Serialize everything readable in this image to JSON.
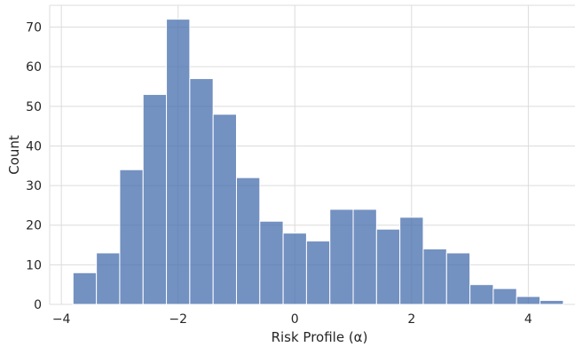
{
  "chart_data": {
    "type": "bar",
    "subtype": "histogram",
    "title": "",
    "xlabel": "Risk Profile (α)",
    "ylabel": "Count",
    "bin_width": 0.4,
    "xlim": [
      -4.2,
      4.8
    ],
    "ylim": [
      0,
      75.5
    ],
    "grid": true,
    "bins": [
      {
        "x0": -3.8,
        "x1": -3.4,
        "count": 8
      },
      {
        "x0": -3.4,
        "x1": -3.0,
        "count": 13
      },
      {
        "x0": -3.0,
        "x1": -2.6,
        "count": 34
      },
      {
        "x0": -2.6,
        "x1": -2.2,
        "count": 53
      },
      {
        "x0": -2.2,
        "x1": -1.8,
        "count": 72
      },
      {
        "x0": -1.8,
        "x1": -1.4,
        "count": 57
      },
      {
        "x0": -1.4,
        "x1": -1.0,
        "count": 48
      },
      {
        "x0": -1.0,
        "x1": -0.6,
        "count": 32
      },
      {
        "x0": -0.6,
        "x1": -0.2,
        "count": 21
      },
      {
        "x0": -0.2,
        "x1": 0.2,
        "count": 18
      },
      {
        "x0": 0.2,
        "x1": 0.6,
        "count": 16
      },
      {
        "x0": 0.6,
        "x1": 1.0,
        "count": 24
      },
      {
        "x0": 1.0,
        "x1": 1.4,
        "count": 24
      },
      {
        "x0": 1.4,
        "x1": 1.8,
        "count": 19
      },
      {
        "x0": 1.8,
        "x1": 2.2,
        "count": 22
      },
      {
        "x0": 2.2,
        "x1": 2.6,
        "count": 14
      },
      {
        "x0": 2.6,
        "x1": 3.0,
        "count": 13
      },
      {
        "x0": 3.0,
        "x1": 3.4,
        "count": 5
      },
      {
        "x0": 3.4,
        "x1": 3.8,
        "count": 4
      },
      {
        "x0": 3.8,
        "x1": 4.2,
        "count": 2
      },
      {
        "x0": 4.2,
        "x1": 4.6,
        "count": 1
      }
    ],
    "x_ticks": [
      {
        "value": -4,
        "label": "−4"
      },
      {
        "value": -2,
        "label": "−2"
      },
      {
        "value": 0,
        "label": "0"
      },
      {
        "value": 2,
        "label": "2"
      },
      {
        "value": 4,
        "label": "4"
      }
    ],
    "y_ticks": [
      {
        "value": 0,
        "label": "0"
      },
      {
        "value": 10,
        "label": "10"
      },
      {
        "value": 20,
        "label": "20"
      },
      {
        "value": 30,
        "label": "30"
      },
      {
        "value": 40,
        "label": "40"
      },
      {
        "value": 50,
        "label": "50"
      },
      {
        "value": 60,
        "label": "60"
      },
      {
        "value": 70,
        "label": "70"
      }
    ],
    "colors": {
      "bar": "#4c72b0",
      "grid": "#dcdcdc",
      "text": "#262626"
    }
  }
}
